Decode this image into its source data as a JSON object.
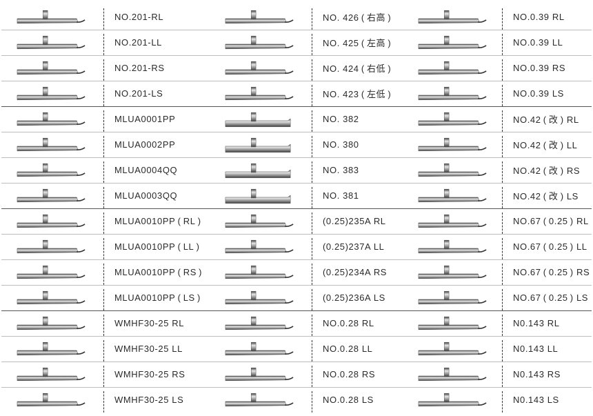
{
  "columns": [
    {
      "items": [
        {
          "label": "NO.201-RL",
          "tip": "hook"
        },
        {
          "label": "NO.201-LL",
          "tip": "hook"
        },
        {
          "label": "NO.201-RS",
          "tip": "hook"
        },
        {
          "label": "NO.201-LS",
          "tip": "hook"
        },
        {
          "label": "MLUA0001PP",
          "tip": "hook"
        },
        {
          "label": "MLUA0002PP",
          "tip": "hook"
        },
        {
          "label": "MLUA0004QQ",
          "tip": "hook"
        },
        {
          "label": "MLUA0003QQ",
          "tip": "hook"
        },
        {
          "label": "MLUA0010PP ( RL )",
          "tip": "hook"
        },
        {
          "label": "MLUA0010PP ( LL )",
          "tip": "hook"
        },
        {
          "label": "MLUA0010PP ( RS )",
          "tip": "hook"
        },
        {
          "label": "MLUA0010PP ( LS )",
          "tip": "hook"
        },
        {
          "label": "WMHF30-25  RL",
          "tip": "hook"
        },
        {
          "label": "WMHF30-25  LL",
          "tip": "hook"
        },
        {
          "label": "WMHF30-25  RS",
          "tip": "hook"
        },
        {
          "label": "WMHF30-25  LS",
          "tip": "hook"
        }
      ]
    },
    {
      "items": [
        {
          "label": "NO. 426 ( 右高 )",
          "tip": "hook"
        },
        {
          "label": "NO. 425 ( 左高 )",
          "tip": "hook"
        },
        {
          "label": "NO. 424 ( 右低 )",
          "tip": "hook"
        },
        {
          "label": "NO. 423 ( 左低 )",
          "tip": "hook"
        },
        {
          "label": "NO. 382",
          "tip": "block"
        },
        {
          "label": "NO. 380",
          "tip": "block"
        },
        {
          "label": "NO. 383",
          "tip": "block"
        },
        {
          "label": "NO. 381",
          "tip": "block"
        },
        {
          "label": "(0.25)235A RL",
          "tip": "hook"
        },
        {
          "label": "(0.25)237A LL",
          "tip": "hook"
        },
        {
          "label": "(0.25)234A RS",
          "tip": "hook"
        },
        {
          "label": "(0.25)236A LS",
          "tip": "hook"
        },
        {
          "label": "NO.0.28  RL",
          "tip": "hook"
        },
        {
          "label": "NO.0.28  LL",
          "tip": "hook"
        },
        {
          "label": "NO.0.28  RS",
          "tip": "hook"
        },
        {
          "label": "NO.0.28  LS",
          "tip": "hook"
        }
      ]
    },
    {
      "items": [
        {
          "label": "NO.0.39  RL",
          "tip": "hook"
        },
        {
          "label": "NO.0.39  LL",
          "tip": "hook"
        },
        {
          "label": "NO.0.39  RS",
          "tip": "hook"
        },
        {
          "label": "NO.0.39  LS",
          "tip": "hook"
        },
        {
          "label": "NO.42 ( 改 )  RL",
          "tip": "hook"
        },
        {
          "label": "NO.42 ( 改 )  LL",
          "tip": "hook"
        },
        {
          "label": "NO.42 ( 改 )  RS",
          "tip": "hook"
        },
        {
          "label": "NO.42 ( 改 )  LS",
          "tip": "hook"
        },
        {
          "label": "NO.67 ( 0.25 )  RL",
          "tip": "hook"
        },
        {
          "label": "NO.67 ( 0.25 )  LL",
          "tip": "hook"
        },
        {
          "label": "NO.67 ( 0.25 )  RS",
          "tip": "hook"
        },
        {
          "label": "NO.67 ( 0.25 )  LS",
          "tip": "hook"
        },
        {
          "label": "N0.143  RL",
          "tip": "hook"
        },
        {
          "label": "N0.143  LL",
          "tip": "hook"
        },
        {
          "label": "N0.143  RS",
          "tip": "hook"
        },
        {
          "label": "N0.143  LS",
          "tip": "hook"
        }
      ]
    }
  ],
  "colors": {
    "blade_light": "#e6e6e6",
    "blade_mid": "#9a9a9a",
    "blade_dark": "#3f3f3f",
    "separator": "#333333"
  }
}
